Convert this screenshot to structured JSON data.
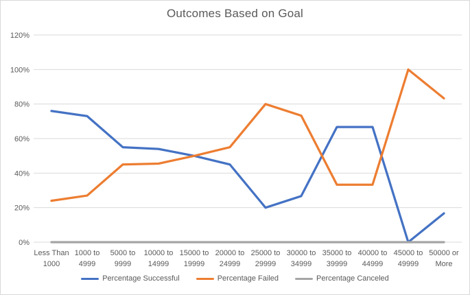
{
  "chart": {
    "title": "Outcomes Based on Goal"
  },
  "chart_data": {
    "type": "line",
    "title": "Outcomes Based on Goal",
    "categories": [
      "Less Than 1000",
      "1000 to 4999",
      "5000 to 9999",
      "10000 to 14999",
      "15000 to 19999",
      "20000 to 24999",
      "25000 to 29999",
      "30000 to 34999",
      "35000 to 39999",
      "40000 to 44999",
      "45000 to 49999",
      "50000 or More"
    ],
    "series": [
      {
        "name": "Percentage Successful",
        "color": "#4472C4",
        "values": [
          76,
          73,
          55,
          54,
          50,
          45,
          20,
          26.7,
          66.7,
          66.7,
          0,
          16.7
        ]
      },
      {
        "name": "Percentage Failed",
        "color": "#ED7D31",
        "values": [
          24,
          27,
          45,
          45.5,
          50,
          55,
          80,
          73.3,
          33.3,
          33.3,
          100,
          83.3
        ]
      },
      {
        "name": "Percentage Canceled",
        "color": "#A5A5A5",
        "values": [
          0,
          0,
          0,
          0,
          0,
          0,
          0,
          0,
          0,
          0,
          0,
          0
        ]
      }
    ],
    "ylim": [
      0,
      120
    ],
    "ytick_step": 20,
    "ytick_labels": [
      "0%",
      "20%",
      "40%",
      "60%",
      "80%",
      "100%",
      "120%"
    ],
    "grid": true,
    "legend_position": "bottom",
    "xlabel": "",
    "ylabel": ""
  },
  "colors": {
    "background": "#FFFFFF",
    "border": "#D9D9D9",
    "gridline": "#D9D9D9",
    "axis_text": "#595959",
    "title_text": "#595959"
  }
}
